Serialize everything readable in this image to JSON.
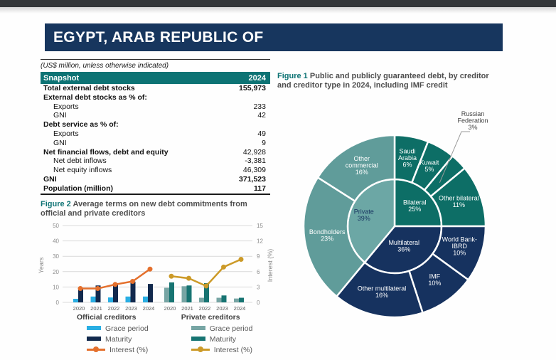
{
  "page": {
    "title": "EGYPT, ARAB REPUBLIC OF",
    "unit_note": "(US$ million, unless otherwise indicated)"
  },
  "snapshot_table": {
    "header": {
      "label": "Snapshot",
      "year": "2024"
    },
    "rows": [
      {
        "label": "Total external debt stocks",
        "value": "155,973"
      },
      {
        "label": "External debt stocks as % of:",
        "value": ""
      },
      {
        "label": "Exports",
        "value": "233"
      },
      {
        "label": "GNI",
        "value": "42"
      },
      {
        "label": "Debt service as % of:",
        "value": ""
      },
      {
        "label": "Exports",
        "value": "49"
      },
      {
        "label": "GNI",
        "value": "9"
      },
      {
        "label": "Net financial flows, debt and equity",
        "value": "42,928"
      },
      {
        "label": "Net debt inflows",
        "value": "-3,381"
      },
      {
        "label": "Net equity inflows",
        "value": "46,309"
      },
      {
        "label": "GNI",
        "value": "371,523"
      },
      {
        "label": "Population (million)",
        "value": "117"
      }
    ]
  },
  "figures": [
    {
      "label": "Figure 1",
      "title": "Public and publicly guaranteed debt, by creditor and creditor type in 2024, including IMF credit"
    },
    {
      "label": "Figure 2",
      "title": "Average terms on new debt commitments from official and private creditors"
    }
  ],
  "colors": {
    "band_navy": "#17365e",
    "table_teal": "#0d7374",
    "caption_teal": "#0d7374"
  },
  "chart_data": [
    {
      "name": "figure1_creditor_sunburst",
      "type": "pie",
      "subtype": "sunburst",
      "title": "Public and publicly guaranteed debt, by creditor and creditor type in 2024, including IMF credit",
      "inner_ring": [
        {
          "label": "Bilateral",
          "value": 25,
          "color": "#0d6e66",
          "text": "#ffffff",
          "lines": [
            "Bilateral",
            "25%"
          ],
          "label_r": 40
        },
        {
          "label": "Multilateral",
          "value": 36,
          "color": "#16325f",
          "text": "#ffffff",
          "lines": [
            "Multilateral",
            "36%"
          ],
          "label_r": 31
        },
        {
          "label": "Private",
          "value": 39,
          "color": "#6ca7a5",
          "text": "#16325f",
          "lines": [
            "Private",
            "39%"
          ],
          "label_r": 46
        }
      ],
      "outer_ring": [
        {
          "label": "Saudi Arabia",
          "value": 6,
          "color": "#0d6e66",
          "text": "#ffffff",
          "lines": [
            "Saudi",
            "Arabia",
            "6%"
          ]
        },
        {
          "label": "Kuwait",
          "value": 5,
          "color": "#0d6e66",
          "text": "#ffffff",
          "lines": [
            "Kuwait",
            "5%"
          ]
        },
        {
          "label": "Russian Federation",
          "value": 3,
          "color": "#0d6e66",
          "text": "#404040",
          "callout": true
        },
        {
          "label": "Other bilateral",
          "value": 11,
          "color": "#0d6e66",
          "text": "#ffffff",
          "lines": [
            "Other bilateral",
            "11%"
          ]
        },
        {
          "label": "World Bank-IBRD",
          "value": 10,
          "color": "#16325f",
          "text": "#ffffff",
          "lines": [
            "World Bank-",
            "IBRD",
            "10%"
          ]
        },
        {
          "label": "IMF",
          "value": 10,
          "color": "#16325f",
          "text": "#ffffff",
          "lines": [
            "IMF",
            "10%"
          ]
        },
        {
          "label": "Other multilateral",
          "value": 16,
          "color": "#16325f",
          "text": "#ffffff",
          "lines": [
            "Other multilateral",
            "16%"
          ]
        },
        {
          "label": "Bondholders",
          "value": 23,
          "color": "#609c9a",
          "text": "#ffffff",
          "lines": [
            "Bondholders",
            "23%"
          ]
        },
        {
          "label": "Other commercial",
          "value": 16,
          "color": "#609c9a",
          "text": "#ffffff",
          "lines": [
            "Other",
            "commercial",
            "16%"
          ]
        }
      ],
      "callout": {
        "lines": [
          "Russian",
          "Federation",
          "3%"
        ]
      }
    },
    {
      "name": "figure2_average_terms",
      "type": "bar",
      "title": "Average terms on new debt commitments from official and private creditors",
      "categories": [
        "2020",
        "2021",
        "2022",
        "2023",
        "2024"
      ],
      "ylabel_left": "Years",
      "ylabel_right": "Interest (%)",
      "ylim_left": [
        0,
        50
      ],
      "ylim_right": [
        0,
        15
      ],
      "yticks_left": [
        0,
        10,
        20,
        30,
        40,
        50
      ],
      "yticks_right": [
        0,
        3,
        6,
        9,
        12,
        15
      ],
      "grid": true,
      "groups": [
        {
          "name": "Official creditors",
          "series": [
            {
              "name": "Grace period",
              "type": "bar",
              "axis": "left",
              "color": "#29aee3",
              "values": [
                2.3,
                3.8,
                3.2,
                3.8,
                3.8
              ]
            },
            {
              "name": "Maturity",
              "type": "bar",
              "axis": "left",
              "color": "#12294d",
              "values": [
                9,
                11,
                12,
                13.5,
                12
              ]
            },
            {
              "name": "Interest (%)",
              "type": "line",
              "axis": "right",
              "color": "#e4702d",
              "values": [
                2.7,
                2.7,
                3.5,
                4.1,
                6.5
              ]
            }
          ]
        },
        {
          "name": "Private creditors",
          "series": [
            {
              "name": "Grace period",
              "type": "bar",
              "axis": "left",
              "color": "#77a5a4",
              "values": [
                9.5,
                10.5,
                3,
                3,
                2.5
              ]
            },
            {
              "name": "Maturity",
              "type": "bar",
              "axis": "left",
              "color": "#177472",
              "values": [
                13,
                11,
                12.5,
                4.5,
                3
              ]
            },
            {
              "name": "Interest (%)",
              "type": "line",
              "axis": "right",
              "color": "#cc9a28",
              "values": [
                5.1,
                4.7,
                3.2,
                6.9,
                8.4
              ]
            }
          ]
        }
      ],
      "legend": {
        "columns": [
          {
            "title": "Official creditors",
            "items": [
              "Grace period",
              "Maturity",
              "Interest (%)"
            ]
          },
          {
            "title": "Private creditors",
            "items": [
              "Grace period",
              "Maturity",
              "Interest (%)"
            ]
          }
        ]
      }
    }
  ]
}
